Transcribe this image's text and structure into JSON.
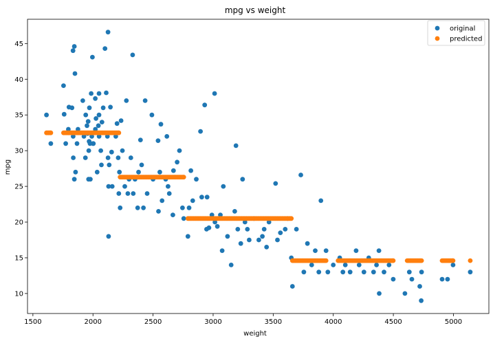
{
  "chart_data": {
    "type": "scatter",
    "title": "mpg vs weight",
    "xlabel": "weight",
    "ylabel": "mpg",
    "xlim": [
      1455,
      5295
    ],
    "ylim": [
      7.2,
      48.4
    ],
    "xticks": [
      1500,
      2000,
      2500,
      3000,
      3500,
      4000,
      4500,
      5000
    ],
    "yticks": [
      10,
      15,
      20,
      25,
      30,
      35,
      40,
      45
    ],
    "legend_position": "top-right",
    "grid": false,
    "series": [
      {
        "name": "original",
        "color": "#1f77b4",
        "points": [
          [
            1613,
            35.0
          ],
          [
            1649,
            31.0
          ],
          [
            1755,
            39.1
          ],
          [
            1760,
            35.1
          ],
          [
            1773,
            31.0
          ],
          [
            1795,
            33.0
          ],
          [
            1800,
            36.1
          ],
          [
            1825,
            36.0
          ],
          [
            1834,
            44.0
          ],
          [
            1835,
            32.0
          ],
          [
            1836,
            29.0
          ],
          [
            1845,
            26.0
          ],
          [
            1845,
            44.6
          ],
          [
            1850,
            40.8
          ],
          [
            1855,
            27.0
          ],
          [
            1867,
            31.0
          ],
          [
            1875,
            33.0
          ],
          [
            1915,
            37.0
          ],
          [
            1925,
            32.0
          ],
          [
            1937,
            29.0
          ],
          [
            1940,
            35.0
          ],
          [
            1950,
            33.5
          ],
          [
            1955,
            32.4
          ],
          [
            1960,
            34.1
          ],
          [
            1963,
            26.0
          ],
          [
            1965,
            30.0
          ],
          [
            1968,
            31.3
          ],
          [
            1970,
            36.0
          ],
          [
            1975,
            31.0
          ],
          [
            1978,
            26.0
          ],
          [
            1985,
            38.0
          ],
          [
            1990,
            32.0
          ],
          [
            1995,
            43.1
          ],
          [
            2000,
            31.0
          ],
          [
            2003,
            31.0
          ],
          [
            2019,
            37.3
          ],
          [
            2020,
            33.0
          ],
          [
            2025,
            34.5
          ],
          [
            2035,
            27.0
          ],
          [
            2045,
            33.5
          ],
          [
            2050,
            35.0
          ],
          [
            2050,
            38.0
          ],
          [
            2051,
            32.0
          ],
          [
            2065,
            30.0
          ],
          [
            2070,
            28.0
          ],
          [
            2075,
            34.0
          ],
          [
            2085,
            36.0
          ],
          [
            2100,
            44.3
          ],
          [
            2110,
            38.1
          ],
          [
            2120,
            32.0
          ],
          [
            2125,
            29.0
          ],
          [
            2125,
            46.6
          ],
          [
            2130,
            25.0
          ],
          [
            2130,
            18.0
          ],
          [
            2135,
            28.0
          ],
          [
            2145,
            36.1
          ],
          [
            2155,
            29.8
          ],
          [
            2160,
            25.0
          ],
          [
            2190,
            32.0
          ],
          [
            2200,
            33.8
          ],
          [
            2210,
            29.0
          ],
          [
            2215,
            24.0
          ],
          [
            2220,
            27.0
          ],
          [
            2226,
            22.0
          ],
          [
            2234,
            34.2
          ],
          [
            2245,
            30.0
          ],
          [
            2265,
            25.0
          ],
          [
            2278,
            37.0
          ],
          [
            2290,
            24.0
          ],
          [
            2300,
            26.0
          ],
          [
            2315,
            29.0
          ],
          [
            2330,
            43.4
          ],
          [
            2335,
            24.0
          ],
          [
            2350,
            26.0
          ],
          [
            2372,
            22.0
          ],
          [
            2379,
            27.0
          ],
          [
            2395,
            31.5
          ],
          [
            2405,
            28.0
          ],
          [
            2420,
            22.0
          ],
          [
            2434,
            37.0
          ],
          [
            2451,
            24.0
          ],
          [
            2490,
            35.0
          ],
          [
            2500,
            26.0
          ],
          [
            2542,
            31.4
          ],
          [
            2545,
            21.5
          ],
          [
            2556,
            27.0
          ],
          [
            2565,
            33.7
          ],
          [
            2575,
            23.0
          ],
          [
            2605,
            26.0
          ],
          [
            2615,
            32.0
          ],
          [
            2625,
            25.0
          ],
          [
            2635,
            24.0
          ],
          [
            2665,
            21.0
          ],
          [
            2670,
            27.2
          ],
          [
            2700,
            28.4
          ],
          [
            2720,
            30.0
          ],
          [
            2745,
            22.0
          ],
          [
            2755,
            20.5
          ],
          [
            2790,
            18.0
          ],
          [
            2800,
            22.0
          ],
          [
            2815,
            27.2
          ],
          [
            2830,
            23.0
          ],
          [
            2860,
            26.0
          ],
          [
            2895,
            32.7
          ],
          [
            2905,
            23.5
          ],
          [
            2930,
            36.4
          ],
          [
            2945,
            19.0
          ],
          [
            2950,
            23.5
          ],
          [
            2965,
            19.2
          ],
          [
            2990,
            21.0
          ],
          [
            3012,
            38.0
          ],
          [
            3015,
            20.0
          ],
          [
            3035,
            19.4
          ],
          [
            3060,
            21.0
          ],
          [
            3075,
            16.0
          ],
          [
            3085,
            25.0
          ],
          [
            3120,
            18.0
          ],
          [
            3150,
            14.0
          ],
          [
            3180,
            21.5
          ],
          [
            3190,
            30.7
          ],
          [
            3205,
            19.0
          ],
          [
            3230,
            17.0
          ],
          [
            3245,
            26.0
          ],
          [
            3265,
            20.0
          ],
          [
            3285,
            19.0
          ],
          [
            3300,
            17.5
          ],
          [
            3340,
            20.5
          ],
          [
            3380,
            17.5
          ],
          [
            3410,
            18.0
          ],
          [
            3425,
            19.0
          ],
          [
            3445,
            16.5
          ],
          [
            3465,
            20.0
          ],
          [
            3520,
            25.4
          ],
          [
            3535,
            17.5
          ],
          [
            3560,
            18.5
          ],
          [
            3600,
            19.0
          ],
          [
            3620,
            20.5
          ],
          [
            3651,
            15.0
          ],
          [
            3660,
            11.0
          ],
          [
            3693,
            19.0
          ],
          [
            3730,
            26.6
          ],
          [
            3755,
            13.0
          ],
          [
            3785,
            17.0
          ],
          [
            3820,
            14.0
          ],
          [
            3850,
            16.0
          ],
          [
            3880,
            13.0
          ],
          [
            3897,
            23.0
          ],
          [
            3940,
            16.0
          ],
          [
            3955,
            13.0
          ],
          [
            4000,
            14.0
          ],
          [
            4054,
            15.0
          ],
          [
            4080,
            13.0
          ],
          [
            4100,
            14.0
          ],
          [
            4140,
            13.0
          ],
          [
            4190,
            16.0
          ],
          [
            4215,
            14.0
          ],
          [
            4255,
            13.0
          ],
          [
            4295,
            15.0
          ],
          [
            4335,
            13.0
          ],
          [
            4360,
            14.0
          ],
          [
            4380,
            16.0
          ],
          [
            4382,
            10.0
          ],
          [
            4422,
            13.0
          ],
          [
            4464,
            14.0
          ],
          [
            4499,
            12.0
          ],
          [
            4596,
            10.0
          ],
          [
            4633,
            13.0
          ],
          [
            4654,
            12.0
          ],
          [
            4720,
            11.0
          ],
          [
            4732,
            9.0
          ],
          [
            4735,
            13.0
          ],
          [
            4906,
            12.0
          ],
          [
            4951,
            12.0
          ],
          [
            4997,
            14.0
          ],
          [
            5140,
            13.0
          ]
        ]
      },
      {
        "name": "predicted",
        "color": "#ff7f0e",
        "segments": [
          {
            "x_from": 1613,
            "x_to": 1649,
            "y": 32.5
          },
          {
            "x_from": 1755,
            "x_to": 2215,
            "y": 32.5
          },
          {
            "x_from": 2226,
            "x_to": 2755,
            "y": 26.3
          },
          {
            "x_from": 2790,
            "x_to": 3651,
            "y": 20.5
          },
          {
            "x_from": 3660,
            "x_to": 3940,
            "y": 14.6
          },
          {
            "x_from": 4040,
            "x_to": 4499,
            "y": 14.6
          },
          {
            "x_from": 4615,
            "x_to": 4735,
            "y": 14.6
          },
          {
            "x_from": 4906,
            "x_to": 4997,
            "y": 14.6
          },
          {
            "x_from": 5140,
            "x_to": 5140,
            "y": 14.6
          }
        ]
      }
    ]
  }
}
